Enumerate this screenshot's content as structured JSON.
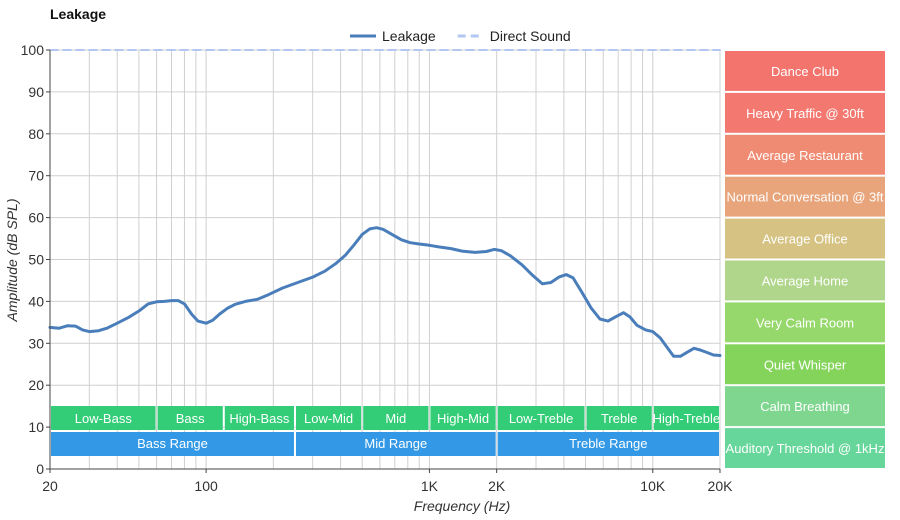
{
  "chart_data": {
    "type": "line",
    "title": "Leakage",
    "xlabel": "Frequency (Hz)",
    "ylabel": "Amplitude (dB SPL)",
    "x_scale": "log",
    "xlim": [
      20,
      20000
    ],
    "ylim": [
      0,
      100
    ],
    "grid": true,
    "legend_position": "top-center",
    "y_ticks": [
      0,
      10,
      20,
      30,
      40,
      50,
      60,
      70,
      80,
      90,
      100
    ],
    "x_ticks": [
      {
        "value": 20,
        "label": "20"
      },
      {
        "value": 100,
        "label": "100"
      },
      {
        "value": 1000,
        "label": "1K"
      },
      {
        "value": 2000,
        "label": "2K"
      },
      {
        "value": 10000,
        "label": "10K"
      },
      {
        "value": 20000,
        "label": "20K"
      }
    ],
    "series": [
      {
        "name": "Leakage",
        "color": "#4a7ebb",
        "style": "solid",
        "points": [
          [
            20,
            33.8
          ],
          [
            22,
            33.6
          ],
          [
            24,
            34.2
          ],
          [
            26,
            34.1
          ],
          [
            28,
            33.2
          ],
          [
            30,
            32.8
          ],
          [
            33,
            33.0
          ],
          [
            36,
            33.6
          ],
          [
            40,
            34.8
          ],
          [
            45,
            36.2
          ],
          [
            50,
            37.7
          ],
          [
            55,
            39.4
          ],
          [
            60,
            39.9
          ],
          [
            65,
            40.0
          ],
          [
            70,
            40.2
          ],
          [
            75,
            40.2
          ],
          [
            80,
            39.4
          ],
          [
            86,
            37.0
          ],
          [
            92,
            35.3
          ],
          [
            100,
            34.8
          ],
          [
            107,
            35.5
          ],
          [
            115,
            37.0
          ],
          [
            125,
            38.4
          ],
          [
            135,
            39.3
          ],
          [
            150,
            40.0
          ],
          [
            170,
            40.5
          ],
          [
            190,
            41.6
          ],
          [
            220,
            43.2
          ],
          [
            260,
            44.6
          ],
          [
            300,
            45.8
          ],
          [
            340,
            47.2
          ],
          [
            380,
            49.0
          ],
          [
            420,
            51.0
          ],
          [
            460,
            53.5
          ],
          [
            500,
            56.0
          ],
          [
            540,
            57.3
          ],
          [
            580,
            57.6
          ],
          [
            620,
            57.2
          ],
          [
            680,
            56.0
          ],
          [
            750,
            54.7
          ],
          [
            820,
            54.0
          ],
          [
            900,
            53.7
          ],
          [
            1000,
            53.4
          ],
          [
            1100,
            53.0
          ],
          [
            1250,
            52.6
          ],
          [
            1400,
            52.0
          ],
          [
            1600,
            51.7
          ],
          [
            1800,
            51.9
          ],
          [
            1950,
            52.4
          ],
          [
            2100,
            52.1
          ],
          [
            2300,
            50.9
          ],
          [
            2600,
            48.7
          ],
          [
            2900,
            46.2
          ],
          [
            3200,
            44.2
          ],
          [
            3500,
            44.5
          ],
          [
            3800,
            45.8
          ],
          [
            4100,
            46.4
          ],
          [
            4400,
            45.6
          ],
          [
            4800,
            42.3
          ],
          [
            5300,
            38.4
          ],
          [
            5800,
            35.8
          ],
          [
            6300,
            35.3
          ],
          [
            6800,
            36.3
          ],
          [
            7400,
            37.3
          ],
          [
            7900,
            36.3
          ],
          [
            8500,
            34.3
          ],
          [
            9300,
            33.2
          ],
          [
            10000,
            32.8
          ],
          [
            10800,
            31.3
          ],
          [
            11600,
            29.0
          ],
          [
            12400,
            26.9
          ],
          [
            13300,
            26.9
          ],
          [
            14300,
            27.9
          ],
          [
            15300,
            28.8
          ],
          [
            16300,
            28.4
          ],
          [
            17500,
            27.8
          ],
          [
            18700,
            27.2
          ],
          [
            20000,
            27.1
          ]
        ]
      },
      {
        "name": "Direct Sound",
        "color": "#b3c7f2",
        "style": "dashed",
        "points": [
          [
            20,
            100
          ],
          [
            20000,
            100
          ]
        ]
      }
    ],
    "frequency_bands": [
      {
        "label": "Low-Bass",
        "from": 20,
        "to": 60,
        "color": "#33cc77"
      },
      {
        "label": "Bass",
        "from": 60,
        "to": 120,
        "color": "#33cc77"
      },
      {
        "label": "High-Bass",
        "from": 120,
        "to": 250,
        "color": "#33cc77"
      },
      {
        "label": "Low-Mid",
        "from": 250,
        "to": 500,
        "color": "#33cc77"
      },
      {
        "label": "Mid",
        "from": 500,
        "to": 1000,
        "color": "#33cc77"
      },
      {
        "label": "High-Mid",
        "from": 1000,
        "to": 2000,
        "color": "#33cc77"
      },
      {
        "label": "Low-Treble",
        "from": 2000,
        "to": 5000,
        "color": "#33cc77"
      },
      {
        "label": "Treble",
        "from": 5000,
        "to": 10000,
        "color": "#33cc77"
      },
      {
        "label": "High-Treble",
        "from": 10000,
        "to": 20000,
        "color": "#33cc77"
      }
    ],
    "frequency_ranges": [
      {
        "label": "Bass Range",
        "from": 20,
        "to": 250,
        "color": "#3399e6"
      },
      {
        "label": "Mid Range",
        "from": 250,
        "to": 2000,
        "color": "#3399e6"
      },
      {
        "label": "Treble Range",
        "from": 2000,
        "to": 20000,
        "color": "#3399e6"
      }
    ],
    "reference_levels": [
      {
        "label": "Dance Club",
        "value": 100,
        "color": "#f3736d"
      },
      {
        "label": "Heavy Traffic @ 30ft",
        "value": 90,
        "color": "#f3786f"
      },
      {
        "label": "Average Restaurant",
        "value": 80,
        "color": "#ef8b72"
      },
      {
        "label": "Normal Conversation @ 3ft",
        "value": 70,
        "color": "#e8a57b"
      },
      {
        "label": "Average Office",
        "value": 60,
        "color": "#d6c383"
      },
      {
        "label": "Average Home",
        "value": 50,
        "color": "#b0d68b"
      },
      {
        "label": "Very Calm Room",
        "value": 40,
        "color": "#96d86c"
      },
      {
        "label": "Quiet Whisper",
        "value": 30,
        "color": "#84d45b"
      },
      {
        "label": "Calm Breathing",
        "value": 20,
        "color": "#7fd68e"
      },
      {
        "label": "Auditory Threshold @ 1kHz",
        "value": 10,
        "color": "#66d69a"
      }
    ]
  }
}
